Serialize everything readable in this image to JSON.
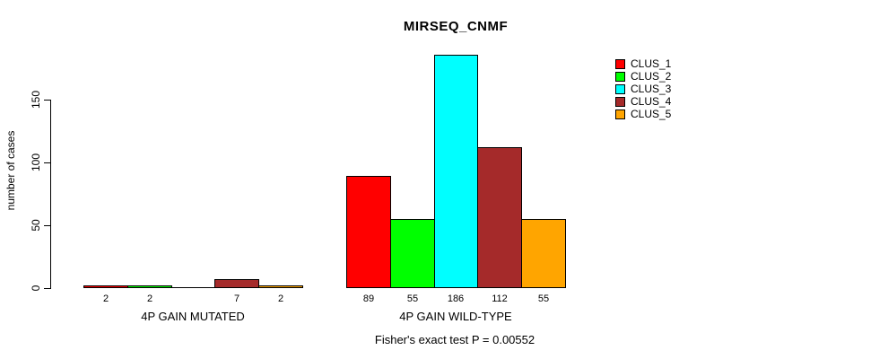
{
  "chart_data": {
    "type": "bar",
    "title": "MIRSEQ_CNMF",
    "ylabel": "number of cases",
    "xlabel": "",
    "yticks": [
      0,
      50,
      100,
      150
    ],
    "ylim": [
      0,
      190
    ],
    "grid": false,
    "legend_position": "right",
    "series_names": [
      "CLUS_1",
      "CLUS_2",
      "CLUS_3",
      "CLUS_4",
      "CLUS_5"
    ],
    "series_colors": [
      "#FF0000",
      "#00FF00",
      "#00FFFF",
      "#A52A2A",
      "#FFA500"
    ],
    "categories": [
      "4P GAIN MUTATED",
      "4P GAIN WILD-TYPE"
    ],
    "groups": [
      {
        "label": "4P GAIN MUTATED",
        "values": [
          2,
          2,
          0,
          7,
          2
        ],
        "bar_labels": [
          "2",
          "2",
          "",
          "7",
          "2"
        ]
      },
      {
        "label": "4P GAIN WILD-TYPE",
        "values": [
          89,
          55,
          186,
          112,
          55
        ],
        "bar_labels": [
          "89",
          "55",
          "186",
          "112",
          "55"
        ]
      }
    ],
    "annotation": "Fisher's exact test P = 0.00552"
  }
}
